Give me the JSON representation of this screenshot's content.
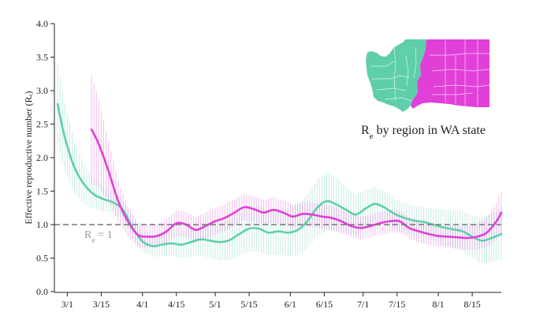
{
  "chart_data": {
    "type": "line",
    "title": "",
    "xlabel": "",
    "ylabel": "Effective reproductive number (Rₑ)",
    "ylim": [
      0.0,
      4.0
    ],
    "yticks": [
      "0.0",
      "0.5",
      "1.0",
      "1.5",
      "2.0",
      "2.5",
      "3.0",
      "3.5",
      "4.0"
    ],
    "xlim": [
      0,
      184
    ],
    "x_day_origin": "2020-02-25",
    "xticks": [
      {
        "label": "3/1",
        "day": 5
      },
      {
        "label": "3/15",
        "day": 19
      },
      {
        "label": "4/1",
        "day": 36
      },
      {
        "label": "4/15",
        "day": 50
      },
      {
        "label": "5/1",
        "day": 66
      },
      {
        "label": "5/15",
        "day": 80
      },
      {
        "label": "6/1",
        "day": 97
      },
      {
        "label": "6/15",
        "day": 111
      },
      {
        "label": "7/1",
        "day": 127
      },
      {
        "label": "7/15",
        "day": 141
      },
      {
        "label": "8/1",
        "day": 158
      },
      {
        "label": "8/15",
        "day": 172
      }
    ],
    "reference_line": {
      "y": 1.0,
      "label_base": "R",
      "label_sub": "e",
      "label_rest": " = 1",
      "color": "#777777",
      "style": "dashed"
    },
    "grid": false,
    "series": [
      {
        "name": "Western WA",
        "color": "#5fcfab",
        "x": [
          1,
          4,
          8,
          12,
          16,
          20,
          24,
          28,
          32,
          36,
          40,
          44,
          48,
          52,
          56,
          60,
          64,
          68,
          72,
          76,
          80,
          84,
          88,
          92,
          96,
          100,
          104,
          108,
          112,
          116,
          120,
          124,
          128,
          132,
          136,
          140,
          144,
          148,
          152,
          156,
          160,
          164,
          168,
          172,
          176,
          180,
          184
        ],
        "y": [
          2.8,
          2.3,
          1.85,
          1.6,
          1.45,
          1.38,
          1.33,
          1.22,
          0.95,
          0.75,
          0.68,
          0.7,
          0.72,
          0.7,
          0.74,
          0.78,
          0.76,
          0.74,
          0.77,
          0.86,
          0.94,
          0.94,
          0.88,
          0.9,
          0.88,
          0.92,
          1.05,
          1.25,
          1.35,
          1.3,
          1.22,
          1.15,
          1.24,
          1.31,
          1.25,
          1.16,
          1.1,
          1.06,
          1.04,
          1.0,
          0.96,
          0.93,
          0.9,
          0.82,
          0.76,
          0.8,
          0.86
        ],
        "ci_half": [
          0.6,
          0.5,
          0.38,
          0.3,
          0.22,
          0.18,
          0.16,
          0.14,
          0.14,
          0.15,
          0.16,
          0.17,
          0.18,
          0.2,
          0.22,
          0.24,
          0.26,
          0.28,
          0.3,
          0.32,
          0.34,
          0.34,
          0.34,
          0.34,
          0.36,
          0.38,
          0.4,
          0.42,
          0.44,
          0.4,
          0.35,
          0.3,
          0.28,
          0.26,
          0.24,
          0.22,
          0.22,
          0.22,
          0.22,
          0.24,
          0.26,
          0.28,
          0.3,
          0.32,
          0.34,
          0.36,
          0.38
        ]
      },
      {
        "name": "Eastern WA",
        "color": "#e040d8",
        "x": [
          15,
          18,
          22,
          26,
          30,
          34,
          38,
          42,
          46,
          50,
          54,
          58,
          62,
          66,
          70,
          74,
          78,
          82,
          86,
          90,
          94,
          98,
          102,
          106,
          110,
          114,
          118,
          122,
          126,
          130,
          134,
          138,
          142,
          146,
          150,
          154,
          158,
          162,
          166,
          170,
          174,
          178,
          182,
          184
        ],
        "y": [
          2.42,
          2.2,
          1.8,
          1.35,
          1.05,
          0.85,
          0.82,
          0.83,
          0.9,
          1.02,
          1.0,
          0.92,
          0.98,
          1.05,
          1.1,
          1.18,
          1.26,
          1.23,
          1.18,
          1.22,
          1.18,
          1.12,
          1.16,
          1.15,
          1.12,
          1.1,
          1.05,
          0.98,
          0.95,
          0.98,
          1.02,
          1.05,
          1.05,
          0.95,
          0.9,
          0.86,
          0.83,
          0.82,
          0.81,
          0.8,
          0.82,
          0.88,
          1.05,
          1.18
        ],
        "ci_half": [
          0.8,
          0.65,
          0.45,
          0.3,
          0.22,
          0.18,
          0.17,
          0.17,
          0.18,
          0.19,
          0.19,
          0.19,
          0.2,
          0.2,
          0.2,
          0.2,
          0.2,
          0.19,
          0.19,
          0.19,
          0.18,
          0.18,
          0.18,
          0.18,
          0.18,
          0.18,
          0.18,
          0.17,
          0.17,
          0.17,
          0.17,
          0.17,
          0.17,
          0.16,
          0.16,
          0.16,
          0.16,
          0.16,
          0.17,
          0.18,
          0.2,
          0.22,
          0.28,
          0.32
        ]
      }
    ],
    "inset_map": {
      "caption_base": "R",
      "caption_sub": "e",
      "caption_rest": " by region in WA state",
      "regions": [
        {
          "name": "western",
          "color": "#5fcfab"
        },
        {
          "name": "eastern",
          "color": "#e040d8"
        }
      ]
    }
  }
}
